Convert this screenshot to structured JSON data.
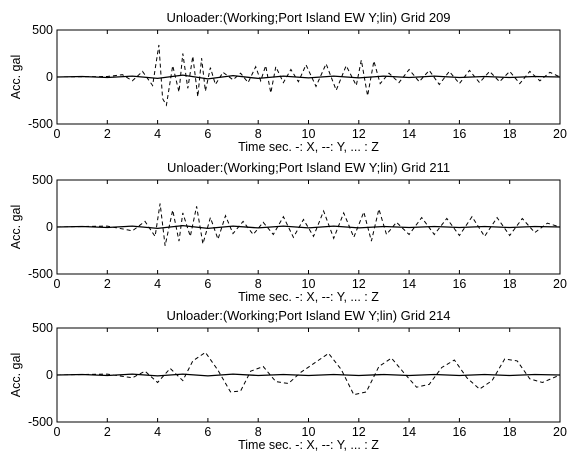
{
  "chart_data": [
    {
      "type": "line",
      "title": "Unloader:(Working;Port Island EW Y;lin)   Grid 209",
      "xlabel": "Time  sec.  -: X, --: Y, ... : Z",
      "ylabel": "Acc. gal",
      "xlim": [
        0,
        20
      ],
      "ylim": [
        -500,
        500
      ],
      "xticks": [
        "0",
        "2",
        "4",
        "6",
        "8",
        "10",
        "12",
        "14",
        "16",
        "18",
        "20"
      ],
      "yticks": [
        "500",
        "0",
        "-500"
      ],
      "grid": false,
      "series": [
        {
          "style": "dashed",
          "x": [
            0,
            2,
            2.6,
            3,
            3.4,
            3.8,
            4.05,
            4.2,
            4.35,
            4.6,
            4.85,
            5.0,
            5.2,
            5.4,
            5.6,
            5.75,
            5.9,
            6.1,
            6.3,
            6.6,
            7.0,
            7.3,
            7.6,
            7.9,
            8.1,
            8.3,
            8.5,
            8.7,
            9.0,
            9.3,
            9.6,
            9.9,
            10.3,
            10.7,
            11.1,
            11.5,
            11.9,
            12.1,
            12.35,
            12.6,
            12.85,
            13.2,
            13.6,
            14.0,
            14.4,
            14.8,
            15.2,
            15.6,
            16.0,
            16.4,
            16.8,
            17.2,
            17.6,
            18.0,
            18.4,
            18.8,
            19.2,
            19.6,
            20
          ],
          "y": [
            0,
            5,
            25,
            -40,
            60,
            -90,
            340,
            -230,
            -300,
            120,
            -160,
            250,
            -120,
            220,
            -210,
            200,
            -150,
            100,
            -80,
            50,
            -30,
            40,
            -60,
            110,
            -40,
            120,
            -170,
            110,
            -60,
            80,
            -50,
            130,
            -100,
            140,
            -140,
            120,
            -90,
            180,
            -200,
            170,
            -70,
            40,
            -60,
            80,
            -50,
            70,
            -80,
            60,
            -70,
            70,
            -60,
            60,
            -50,
            60,
            -70,
            60,
            -40,
            50,
            0
          ]
        },
        {
          "style": "solid",
          "x": [
            0,
            1,
            2,
            3,
            4,
            5,
            6,
            7,
            8,
            9,
            10,
            11,
            12,
            13,
            14,
            15,
            16,
            17,
            18,
            19,
            20
          ],
          "y": [
            0,
            5,
            -5,
            10,
            -15,
            20,
            -20,
            15,
            -15,
            10,
            -10,
            10,
            -10,
            10,
            -5,
            10,
            -5,
            5,
            -5,
            5,
            0
          ]
        }
      ]
    },
    {
      "type": "line",
      "title": "Unloader:(Working;Port Island EW Y;lin)   Grid 211",
      "xlabel": "Time  sec.  -: X, --: Y, ... : Z",
      "ylabel": "Acc. gal",
      "xlim": [
        0,
        20
      ],
      "ylim": [
        -500,
        500
      ],
      "xticks": [
        "0",
        "2",
        "4",
        "6",
        "8",
        "10",
        "12",
        "14",
        "16",
        "18",
        "20"
      ],
      "yticks": [
        "500",
        "0",
        "-500"
      ],
      "grid": false,
      "series": [
        {
          "style": "dashed",
          "x": [
            0,
            2,
            3,
            3.5,
            3.9,
            4.1,
            4.3,
            4.6,
            4.85,
            5.0,
            5.3,
            5.55,
            5.8,
            6.1,
            6.4,
            6.7,
            7.0,
            7.4,
            7.8,
            8.2,
            8.6,
            9.0,
            9.4,
            9.8,
            10.2,
            10.6,
            11.0,
            11.4,
            11.8,
            12.2,
            12.5,
            12.8,
            13.1,
            13.5,
            14.0,
            14.5,
            15.0,
            15.5,
            16.0,
            16.5,
            17.0,
            17.5,
            18.0,
            18.5,
            19.0,
            19.5,
            20
          ],
          "y": [
            0,
            10,
            -40,
            60,
            -100,
            250,
            -200,
            180,
            -150,
            150,
            -100,
            220,
            -180,
            100,
            -130,
            120,
            -70,
            60,
            -80,
            50,
            -80,
            110,
            -110,
            80,
            -100,
            170,
            -120,
            150,
            -110,
            160,
            -150,
            190,
            -80,
            50,
            -80,
            100,
            -80,
            90,
            -90,
            110,
            -100,
            100,
            -90,
            90,
            -60,
            40,
            0
          ]
        },
        {
          "style": "solid",
          "x": [
            0,
            1,
            2,
            3,
            4,
            5,
            6,
            7,
            8,
            9,
            10,
            11,
            12,
            13,
            14,
            15,
            16,
            17,
            18,
            19,
            20
          ],
          "y": [
            0,
            5,
            -5,
            10,
            -15,
            15,
            -15,
            10,
            -10,
            10,
            -10,
            10,
            -10,
            5,
            -5,
            5,
            -5,
            5,
            -5,
            5,
            0
          ]
        }
      ]
    },
    {
      "type": "line",
      "title": "Unloader:(Working;Port Island EW Y;lin)   Grid 214",
      "xlabel": "Time  sec.  -: X, --: Y, ... : Z",
      "ylabel": "Acc. gal",
      "xlim": [
        0,
        20
      ],
      "ylim": [
        -500,
        500
      ],
      "xticks": [
        "0",
        "2",
        "4",
        "6",
        "8",
        "10",
        "12",
        "14",
        "16",
        "18",
        "20"
      ],
      "yticks": [
        "500",
        "0",
        "-500"
      ],
      "grid": false,
      "series": [
        {
          "style": "dashed",
          "x": [
            0,
            2,
            3,
            3.5,
            4.0,
            4.5,
            5.0,
            5.4,
            5.9,
            6.4,
            6.9,
            7.3,
            7.7,
            8.2,
            8.7,
            9.2,
            9.7,
            10.2,
            10.8,
            11.3,
            11.8,
            12.3,
            12.8,
            13.3,
            13.8,
            14.3,
            14.8,
            15.3,
            15.8,
            16.3,
            16.8,
            17.3,
            17.8,
            18.3,
            18.8,
            19.3,
            20
          ],
          "y": [
            0,
            10,
            -30,
            40,
            -80,
            70,
            -60,
            150,
            240,
            50,
            -180,
            -170,
            40,
            90,
            -70,
            -90,
            30,
            120,
            230,
            60,
            -210,
            -180,
            90,
            180,
            20,
            -130,
            -100,
            80,
            160,
            -30,
            -150,
            -60,
            170,
            150,
            -40,
            -80,
            0
          ]
        },
        {
          "style": "solid",
          "x": [
            0,
            1,
            2,
            3,
            4,
            5,
            6,
            7,
            8,
            9,
            10,
            11,
            12,
            13,
            14,
            15,
            16,
            17,
            18,
            19,
            20
          ],
          "y": [
            0,
            5,
            -5,
            10,
            -10,
            10,
            -10,
            10,
            -5,
            5,
            -5,
            5,
            -5,
            5,
            -5,
            5,
            -5,
            5,
            -5,
            5,
            0
          ]
        }
      ]
    }
  ]
}
